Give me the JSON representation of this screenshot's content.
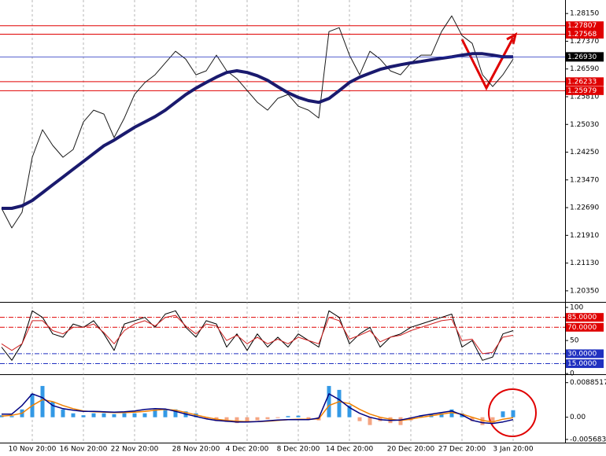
{
  "chart_data": [
    {
      "type": "line",
      "ylim": [
        1.2006,
        1.2853
      ],
      "yticks": [
        {
          "value": 1.2815,
          "label": "1.28150"
        },
        {
          "value": 1.2737,
          "label": "1.27370"
        },
        {
          "value": 1.2659,
          "label": "1.26590"
        },
        {
          "value": 1.2581,
          "label": "1.25810"
        },
        {
          "value": 1.2503,
          "label": "1.25030"
        },
        {
          "value": 1.2425,
          "label": "1.24250"
        },
        {
          "value": 1.2347,
          "label": "1.23470"
        },
        {
          "value": 1.2269,
          "label": "1.22690"
        },
        {
          "value": 1.2191,
          "label": "1.21910"
        },
        {
          "value": 1.2113,
          "label": "1.21130"
        },
        {
          "value": 1.2035,
          "label": "1.20350"
        }
      ],
      "levels": [
        {
          "value": 1.27807,
          "label": "1.27807",
          "color": "#e00000"
        },
        {
          "value": 1.27568,
          "label": "1.27568",
          "color": "#e00000"
        },
        {
          "value": 1.26233,
          "label": "1.26233",
          "color": "#e00000"
        },
        {
          "value": 1.25979,
          "label": "1.25979",
          "color": "#e00000"
        }
      ],
      "current": {
        "value": 1.2693,
        "label": "1.26930",
        "color": "#2030c0"
      },
      "series": [
        {
          "color": "#1a1a1a",
          "width": 1,
          "values": [
            1.2267,
            1.22118,
            1.2256,
            1.24106,
            1.2488,
            1.24438,
            1.24106,
            1.24327,
            1.25101,
            1.25432,
            1.25322,
            1.24659,
            1.25211,
            1.25874,
            1.26206,
            1.26427,
            1.26758,
            1.27089,
            1.26868,
            1.26427,
            1.26537,
            1.26979,
            1.26537,
            1.26316,
            1.25985,
            1.25653,
            1.25432,
            1.25764,
            1.25874,
            1.25543,
            1.25432,
            1.25211,
            1.27642,
            1.27752,
            1.26979,
            1.26427,
            1.27089,
            1.26868,
            1.26537,
            1.26427,
            1.26758,
            1.26979,
            1.26979,
            1.27642,
            1.28084,
            1.27531,
            1.2731,
            1.26427,
            1.26095,
            1.26427,
            1.26868
          ]
        },
        {
          "color": "#1a1a6e",
          "width": 4,
          "values": [
            1.2267,
            1.2267,
            1.2274,
            1.2289,
            1.2311,
            1.2333,
            1.2355,
            1.2377,
            1.2399,
            1.2421,
            1.2443,
            1.2459,
            1.2477,
            1.2495,
            1.251,
            1.2525,
            1.2543,
            1.2565,
            1.2587,
            1.2605,
            1.2621,
            1.2636,
            1.2649,
            1.2654,
            1.2649,
            1.264,
            1.2627,
            1.2609,
            1.2592,
            1.2579,
            1.257,
            1.2565,
            1.2576,
            1.2598,
            1.2621,
            1.2636,
            1.2647,
            1.2658,
            1.2665,
            1.2671,
            1.2676,
            1.268,
            1.2685,
            1.2689,
            1.2693,
            1.2698,
            1.2702,
            1.2702,
            1.2698,
            1.2693,
            1.2693
          ]
        }
      ]
    },
    {
      "type": "line",
      "ylim": [
        -1,
        106
      ],
      "yticks": [
        100,
        50,
        0
      ],
      "levels": [
        {
          "value": 85,
          "label": "85.0000",
          "color": "#e00000"
        },
        {
          "value": 70,
          "label": "70.0000",
          "color": "#e00000"
        },
        {
          "value": 30,
          "label": "30.0000",
          "color": "#2030c0"
        },
        {
          "value": 15,
          "label": "15.0000",
          "color": "#2030c0"
        }
      ],
      "series": [
        {
          "color": "#000000",
          "width": 1,
          "values": [
            40,
            20,
            45,
            95,
            85,
            60,
            55,
            75,
            70,
            80,
            60,
            35,
            75,
            80,
            85,
            70,
            90,
            95,
            70,
            55,
            80,
            75,
            40,
            60,
            35,
            60,
            40,
            55,
            40,
            60,
            50,
            40,
            95,
            85,
            45,
            60,
            70,
            40,
            55,
            60,
            70,
            75,
            80,
            85,
            90,
            40,
            50,
            20,
            25,
            60,
            65
          ]
        },
        {
          "color": "#d02020",
          "width": 1,
          "values": [
            45,
            35,
            45,
            80,
            80,
            65,
            60,
            70,
            70,
            75,
            62,
            45,
            65,
            75,
            80,
            72,
            85,
            88,
            72,
            60,
            75,
            72,
            50,
            58,
            45,
            55,
            45,
            52,
            45,
            55,
            50,
            45,
            85,
            80,
            52,
            58,
            65,
            48,
            55,
            58,
            65,
            70,
            75,
            80,
            82,
            50,
            52,
            30,
            32,
            55,
            58
          ]
        }
      ]
    },
    {
      "type": "bar",
      "ylim": [
        -0.0063,
        0.0106
      ],
      "yticks": [
        0.0088517,
        {
          "value": 0,
          "label": "0.00"
        },
        -0.005683
      ],
      "categories": [
        null,
        null,
        null,
        "10 Nov 20:00",
        null,
        null,
        null,
        null,
        "16 Nov 20:00",
        null,
        null,
        null,
        null,
        "22 Nov 20:00",
        null,
        null,
        null,
        null,
        null,
        "28 Nov 20:00",
        null,
        null,
        null,
        null,
        "4 Dec 20:00",
        null,
        null,
        null,
        null,
        "8 Dec 20:00",
        null,
        null,
        null,
        null,
        "14 Dec 20:00",
        null,
        null,
        null,
        null,
        null,
        "20 Dec 20:00",
        null,
        null,
        null,
        null,
        "27 Dec 20:00",
        null,
        null,
        null,
        null,
        "3 Jan 20:00"
      ],
      "colors": {
        "positive": "#3399e6",
        "negative": "#f4a582"
      },
      "values": [
        0.0005,
        0.0003,
        0.002,
        0.006,
        0.008,
        0.004,
        0.002,
        0.001,
        0.0005,
        0.001,
        0.001,
        0.0008,
        0.001,
        0.001,
        0.001,
        0.002,
        0.002,
        0.002,
        0.0015,
        0.001,
        -0.0005,
        -0.001,
        -0.0012,
        -0.0015,
        -0.001,
        -0.0008,
        -0.0005,
        -0.0002,
        0.0003,
        0.0004,
        -0.0005,
        -0.0008,
        0.008,
        0.007,
        0.003,
        -0.001,
        -0.002,
        -0.001,
        -0.0015,
        -0.002,
        -0.0008,
        0.0005,
        0.0008,
        0.001,
        0.002,
        0.001,
        -0.001,
        -0.002,
        -0.0015,
        0.0015,
        0.0018
      ],
      "series": [
        {
          "color": "#f08000",
          "width": 1.5,
          "values": [
            0.0003,
            0.0005,
            0.001,
            0.003,
            0.0045,
            0.004,
            0.003,
            0.0022,
            0.0016,
            0.0014,
            0.0013,
            0.0012,
            0.0012,
            0.0013,
            0.0015,
            0.0018,
            0.002,
            0.0018,
            0.0012,
            0.0006,
            0.0,
            -0.0005,
            -0.0008,
            -0.001,
            -0.0011,
            -0.0011,
            -0.001,
            -0.0008,
            -0.0006,
            -0.0005,
            -0.0005,
            -0.0004,
            0.003,
            0.004,
            0.0035,
            0.002,
            0.0008,
            0.0,
            -0.0005,
            -0.0008,
            -0.0005,
            0.0,
            0.0004,
            0.0008,
            0.0012,
            0.0008,
            0.0,
            -0.0008,
            -0.0012,
            -0.0005,
            -0.0001
          ]
        },
        {
          "color": "#000080",
          "width": 1.5,
          "values": [
            0.0008,
            0.0008,
            0.003,
            0.006,
            0.005,
            0.003,
            0.0022,
            0.0018,
            0.0015,
            0.0015,
            0.0014,
            0.0013,
            0.0014,
            0.0016,
            0.002,
            0.0022,
            0.0021,
            0.0015,
            0.0008,
            0.0002,
            -0.0004,
            -0.0008,
            -0.001,
            -0.0012,
            -0.0012,
            -0.0011,
            -0.0009,
            -0.0007,
            -0.0006,
            -0.0006,
            -0.0006,
            -0.0002,
            0.006,
            0.0045,
            0.0025,
            0.001,
            0.0,
            -0.0006,
            -0.0008,
            -0.0007,
            -0.0002,
            0.0004,
            0.0008,
            0.0012,
            0.0016,
            0.0006,
            -0.0008,
            -0.0014,
            -0.0016,
            -0.0012,
            -0.0006
          ]
        }
      ]
    }
  ]
}
